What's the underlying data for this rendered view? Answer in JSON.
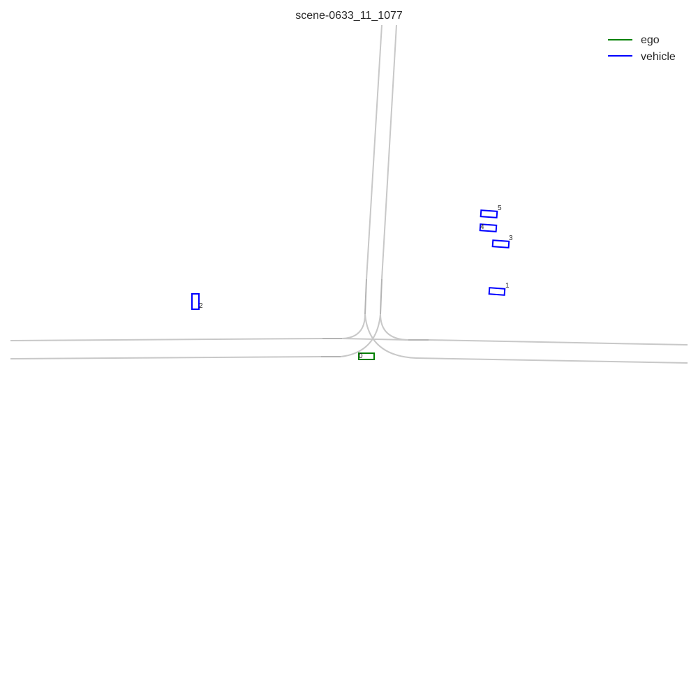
{
  "scene": {
    "title": "scene-0633_11_1077"
  },
  "legend": [
    {
      "label": "ego",
      "color": "#008000"
    },
    {
      "label": "vehicle",
      "color": "#0000ff"
    }
  ],
  "colors": {
    "lane": "#c8c8c8",
    "ego": "#008000",
    "vehicle": "#0000ff"
  },
  "agents": [
    {
      "id": "0",
      "type": "ego"
    },
    {
      "id": "1",
      "type": "vehicle"
    },
    {
      "id": "2",
      "type": "vehicle"
    },
    {
      "id": "3",
      "type": "vehicle"
    },
    {
      "id": "4",
      "type": "vehicle"
    },
    {
      "id": "5",
      "type": "vehicle"
    }
  ]
}
